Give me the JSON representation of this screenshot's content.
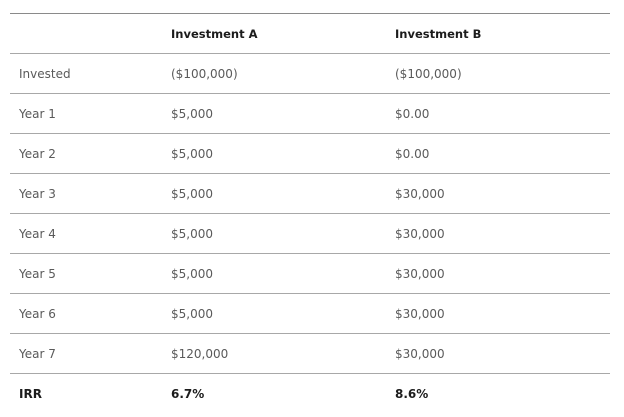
{
  "table": {
    "header": [
      "Investment A",
      "Investment B"
    ],
    "rows": [
      [
        "Invested",
        "($100,000)",
        "($100,000)"
      ],
      [
        "Year 1",
        "$5,000",
        "$0.00"
      ],
      [
        "Year 2",
        "$5,000",
        "$0.00"
      ],
      [
        "Year 3",
        "$5,000",
        "$30,000"
      ],
      [
        "Year 4",
        "$5,000",
        "$30,000"
      ],
      [
        "Year 5",
        "$5,000",
        "$30,000"
      ],
      [
        "Year 6",
        "$5,000",
        "$30,000"
      ],
      [
        "Year 7",
        "$120,000",
        "$30,000"
      ],
      [
        "IRR",
        "6.7%",
        "8.6%"
      ]
    ]
  }
}
